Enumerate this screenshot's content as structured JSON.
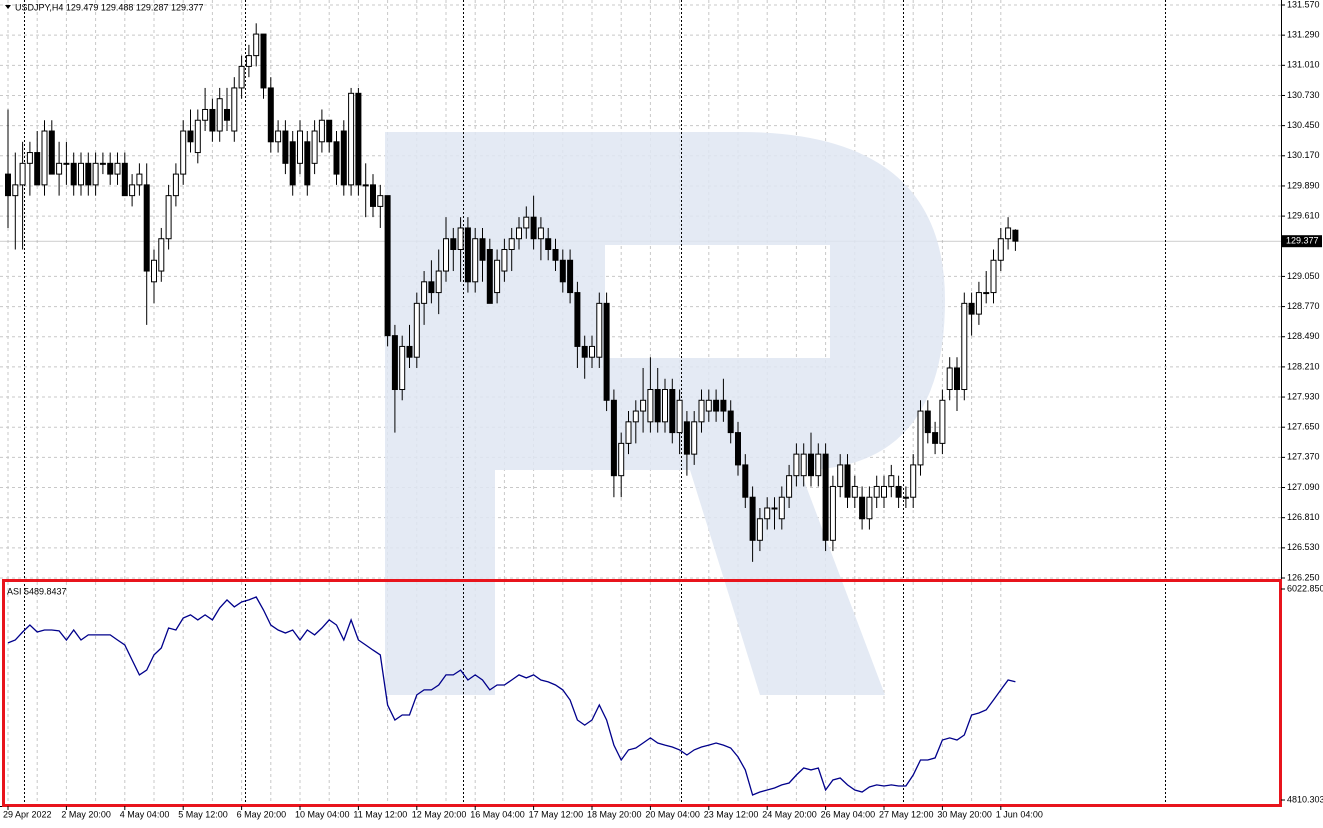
{
  "chart_data": [
    {
      "type": "candlestick",
      "title": "USDJPY,H4 129.479 129.488 129.287 129.377",
      "categories": [
        "29 Apr 2022",
        null,
        null,
        null,
        null,
        null,
        null,
        null,
        "2 May 20:00",
        null,
        null,
        null,
        null,
        null,
        null,
        null,
        "4 May 04:00",
        null,
        null,
        null,
        null,
        null,
        null,
        null,
        "5 May 12:00",
        null,
        null,
        null,
        null,
        null,
        null,
        null,
        "6 May 20:00",
        null,
        null,
        null,
        null,
        null,
        null,
        null,
        "10 May 04:00",
        null,
        null,
        null,
        null,
        null,
        null,
        null,
        "11 May 12:00",
        null,
        null,
        null,
        null,
        null,
        null,
        null,
        "12 May 20:00",
        null,
        null,
        null,
        null,
        null,
        null,
        null,
        "16 May 04:00",
        null,
        null,
        null,
        null,
        null,
        null,
        null,
        "17 May 12:00",
        null,
        null,
        null,
        null,
        null,
        null,
        null,
        "18 May 20:00",
        null,
        null,
        null,
        null,
        null,
        null,
        null,
        "20 May 04:00",
        null,
        null,
        null,
        null,
        null,
        null,
        null,
        "23 May 12:00",
        null,
        null,
        null,
        null,
        null,
        null,
        null,
        "24 May 20:00",
        null,
        null,
        null,
        null,
        null,
        null,
        null,
        "26 May 04:00",
        null,
        null,
        null,
        null,
        null,
        null,
        null,
        "27 May 12:00",
        null,
        null,
        null,
        null,
        null,
        null,
        null,
        "30 May 20:00",
        null,
        null,
        null,
        null,
        null,
        null,
        null,
        "1 Jun 04:00",
        null,
        null
      ],
      "ohlc": [
        [
          130.0,
          130.6,
          129.5,
          129.8
        ],
        [
          129.8,
          130.2,
          129.3,
          129.9
        ],
        [
          129.9,
          130.3,
          129.3,
          130.1
        ],
        [
          130.1,
          130.3,
          129.8,
          130.2
        ],
        [
          130.2,
          130.4,
          129.9,
          129.9
        ],
        [
          129.9,
          130.5,
          129.8,
          130.4
        ],
        [
          130.4,
          130.5,
          130.0,
          130.0
        ],
        [
          130.0,
          130.3,
          129.8,
          130.1
        ],
        [
          130.1,
          130.3,
          129.9,
          130.1
        ],
        [
          130.1,
          130.2,
          129.8,
          129.9
        ],
        [
          129.9,
          130.2,
          129.8,
          130.1
        ],
        [
          130.1,
          130.2,
          129.8,
          129.9
        ],
        [
          129.9,
          130.2,
          129.8,
          130.1
        ],
        [
          130.1,
          130.2,
          130.0,
          130.1
        ],
        [
          130.1,
          130.2,
          129.9,
          130.0
        ],
        [
          130.0,
          130.2,
          129.9,
          130.1
        ],
        [
          130.1,
          130.2,
          129.8,
          129.8
        ],
        [
          129.8,
          130.0,
          129.7,
          129.9
        ],
        [
          129.9,
          130.1,
          129.8,
          130.0
        ],
        [
          129.9,
          130.1,
          128.6,
          129.1
        ],
        [
          129.0,
          129.3,
          128.8,
          129.2
        ],
        [
          129.1,
          129.5,
          129.0,
          129.4
        ],
        [
          129.4,
          129.9,
          129.3,
          129.8
        ],
        [
          129.8,
          130.1,
          129.7,
          130.0
        ],
        [
          130.0,
          130.5,
          129.9,
          130.4
        ],
        [
          130.4,
          130.6,
          130.2,
          130.3
        ],
        [
          130.2,
          130.6,
          130.1,
          130.5
        ],
        [
          130.5,
          130.8,
          130.4,
          130.6
        ],
        [
          130.6,
          130.7,
          130.3,
          130.4
        ],
        [
          130.4,
          130.8,
          130.3,
          130.7
        ],
        [
          130.6,
          130.8,
          130.4,
          130.5
        ],
        [
          130.4,
          130.9,
          130.3,
          130.8
        ],
        [
          130.8,
          131.1,
          130.7,
          131.0
        ],
        [
          131.0,
          131.2,
          130.9,
          131.1
        ],
        [
          131.1,
          131.4,
          131.0,
          131.3
        ],
        [
          131.3,
          131.3,
          130.7,
          130.8
        ],
        [
          130.8,
          130.9,
          130.2,
          130.3
        ],
        [
          130.3,
          130.5,
          130.2,
          130.4
        ],
        [
          130.4,
          130.5,
          130.0,
          130.1
        ],
        [
          130.3,
          130.4,
          129.8,
          129.9
        ],
        [
          130.1,
          130.5,
          130.0,
          130.4
        ],
        [
          130.3,
          130.4,
          129.8,
          129.9
        ],
        [
          130.1,
          130.5,
          130.0,
          130.4
        ],
        [
          130.3,
          130.6,
          130.2,
          130.5
        ],
        [
          130.5,
          130.5,
          130.2,
          130.3
        ],
        [
          130.3,
          130.4,
          129.9,
          130.0
        ],
        [
          130.4,
          130.5,
          129.8,
          129.9
        ],
        [
          129.9,
          130.8,
          129.8,
          130.75
        ],
        [
          130.75,
          130.8,
          129.8,
          129.9
        ],
        [
          129.9,
          130.1,
          129.6,
          129.9
        ],
        [
          129.9,
          130.0,
          129.6,
          129.7
        ],
        [
          129.7,
          129.9,
          129.5,
          129.8
        ],
        [
          129.8,
          129.8,
          128.4,
          128.5
        ],
        [
          128.5,
          128.6,
          127.6,
          128.0
        ],
        [
          128.0,
          128.5,
          127.9,
          128.4
        ],
        [
          128.4,
          128.6,
          128.2,
          128.3
        ],
        [
          128.3,
          128.9,
          128.2,
          128.8
        ],
        [
          128.8,
          129.1,
          128.6,
          129.0
        ],
        [
          129.0,
          129.2,
          128.8,
          128.9
        ],
        [
          128.9,
          129.3,
          128.7,
          129.1
        ],
        [
          129.1,
          129.6,
          129.0,
          129.4
        ],
        [
          129.4,
          129.5,
          129.1,
          129.3
        ],
        [
          129.3,
          129.6,
          129.0,
          129.5
        ],
        [
          129.5,
          129.6,
          128.9,
          129.0
        ],
        [
          129.0,
          129.5,
          128.9,
          129.4
        ],
        [
          129.4,
          129.5,
          129.0,
          129.2
        ],
        [
          129.3,
          129.4,
          128.8,
          128.8
        ],
        [
          128.9,
          129.3,
          128.8,
          129.2
        ],
        [
          129.1,
          129.4,
          129.0,
          129.3
        ],
        [
          129.3,
          129.5,
          129.1,
          129.4
        ],
        [
          129.4,
          129.6,
          129.3,
          129.5
        ],
        [
          129.5,
          129.7,
          129.4,
          129.6
        ],
        [
          129.6,
          129.8,
          129.3,
          129.4
        ],
        [
          129.4,
          129.6,
          129.2,
          129.5
        ],
        [
          129.4,
          129.5,
          129.2,
          129.3
        ],
        [
          129.3,
          129.4,
          129.1,
          129.2
        ],
        [
          129.2,
          129.3,
          128.9,
          129.0
        ],
        [
          129.2,
          129.3,
          128.8,
          128.9
        ],
        [
          128.9,
          129.0,
          128.2,
          128.4
        ],
        [
          128.4,
          128.5,
          128.1,
          128.3
        ],
        [
          128.3,
          128.5,
          128.2,
          128.4
        ],
        [
          128.3,
          128.9,
          128.2,
          128.8
        ],
        [
          128.8,
          128.9,
          127.8,
          127.9
        ],
        [
          127.9,
          128.0,
          127.0,
          127.2
        ],
        [
          127.2,
          127.6,
          127.0,
          127.5
        ],
        [
          127.5,
          127.8,
          127.4,
          127.7
        ],
        [
          127.7,
          127.9,
          127.5,
          127.8
        ],
        [
          127.8,
          128.2,
          127.6,
          127.9
        ],
        [
          127.7,
          128.3,
          127.6,
          128.0
        ],
        [
          128.0,
          128.2,
          127.6,
          127.7
        ],
        [
          127.7,
          128.1,
          127.6,
          128.0
        ],
        [
          128.0,
          128.1,
          127.5,
          127.6
        ],
        [
          127.6,
          128.0,
          127.4,
          127.9
        ],
        [
          127.7,
          127.8,
          127.2,
          127.4
        ],
        [
          127.4,
          127.8,
          127.3,
          127.7
        ],
        [
          127.7,
          128.0,
          127.6,
          127.9
        ],
        [
          127.8,
          128.0,
          127.7,
          127.9
        ],
        [
          127.9,
          128.0,
          127.7,
          127.8
        ],
        [
          127.9,
          128.1,
          127.7,
          127.8
        ],
        [
          127.8,
          127.9,
          127.5,
          127.6
        ],
        [
          127.6,
          127.7,
          127.2,
          127.3
        ],
        [
          127.3,
          127.4,
          126.9,
          127.0
        ],
        [
          127.0,
          127.1,
          126.4,
          126.6
        ],
        [
          126.6,
          126.9,
          126.5,
          126.8
        ],
        [
          126.8,
          127.0,
          126.7,
          126.9
        ],
        [
          126.9,
          127.0,
          126.7,
          126.9
        ],
        [
          126.8,
          127.1,
          126.7,
          127.0
        ],
        [
          127.0,
          127.3,
          126.9,
          127.2
        ],
        [
          127.2,
          127.5,
          127.1,
          127.4
        ],
        [
          127.2,
          127.5,
          127.1,
          127.4
        ],
        [
          127.4,
          127.6,
          127.1,
          127.2
        ],
        [
          127.2,
          127.5,
          127.1,
          127.4
        ],
        [
          127.4,
          127.5,
          126.5,
          126.6
        ],
        [
          126.6,
          127.2,
          126.5,
          127.1
        ],
        [
          127.1,
          127.4,
          127.0,
          127.3
        ],
        [
          127.3,
          127.4,
          126.9,
          127.0
        ],
        [
          127.0,
          127.2,
          126.9,
          127.1
        ],
        [
          127.0,
          127.1,
          126.7,
          126.8
        ],
        [
          126.8,
          127.1,
          126.7,
          127.0
        ],
        [
          127.0,
          127.2,
          126.9,
          127.1
        ],
        [
          127.0,
          127.2,
          126.9,
          127.1
        ],
        [
          127.1,
          127.3,
          127.0,
          127.2
        ],
        [
          127.1,
          127.2,
          126.9,
          127.0
        ],
        [
          127.0,
          127.1,
          126.9,
          127.0
        ],
        [
          127.0,
          127.4,
          126.9,
          127.3
        ],
        [
          127.3,
          127.9,
          127.2,
          127.8
        ],
        [
          127.8,
          127.9,
          127.5,
          127.6
        ],
        [
          127.6,
          127.7,
          127.4,
          127.5
        ],
        [
          127.5,
          128.0,
          127.4,
          127.9
        ],
        [
          128.0,
          128.3,
          127.9,
          128.2
        ],
        [
          128.2,
          128.3,
          127.8,
          128.0
        ],
        [
          128.0,
          128.9,
          127.9,
          128.8
        ],
        [
          128.8,
          128.9,
          128.5,
          128.7
        ],
        [
          128.7,
          129.0,
          128.6,
          128.9
        ],
        [
          128.9,
          129.1,
          128.8,
          128.9
        ],
        [
          128.9,
          129.3,
          128.8,
          129.2
        ],
        [
          129.2,
          129.5,
          129.1,
          129.4
        ],
        [
          129.4,
          129.6,
          129.3,
          129.5
        ],
        [
          129.479,
          129.488,
          129.287,
          129.377
        ]
      ],
      "up_color": "#ffffff",
      "down_color": "#000000",
      "ylim": [
        126.25,
        131.57
      ],
      "yticks": [
        {
          "value": 126.25,
          "label": "126.250"
        },
        {
          "value": 126.53,
          "label": "126.530"
        },
        {
          "value": 126.81,
          "label": "126.810"
        },
        {
          "value": 127.09,
          "label": "127.090"
        },
        {
          "value": 127.37,
          "label": "127.370"
        },
        {
          "value": 127.65,
          "label": "127.650"
        },
        {
          "value": 127.93,
          "label": "127.930"
        },
        {
          "value": 128.21,
          "label": "128.210"
        },
        {
          "value": 128.49,
          "label": "128.490"
        },
        {
          "value": 128.77,
          "label": "128.770"
        },
        {
          "value": 129.05,
          "label": "129.050"
        },
        {
          "value": 129.61,
          "label": "129.610"
        },
        {
          "value": 129.89,
          "label": "129.890"
        },
        {
          "value": 130.17,
          "label": "130.170"
        },
        {
          "value": 130.45,
          "label": "130.450"
        },
        {
          "value": 130.73,
          "label": "130.730"
        },
        {
          "value": 131.01,
          "label": "131.010"
        },
        {
          "value": 131.29,
          "label": "131.290"
        },
        {
          "value": 131.57,
          "label": "131.570"
        }
      ],
      "current_price": {
        "value": 129.377,
        "label": "129.377"
      },
      "grid": true
    },
    {
      "type": "line",
      "title": "ASI 5489.8437",
      "color": "#00008b",
      "values": [
        5713,
        5730,
        5776,
        5816,
        5776,
        5787,
        5787,
        5782,
        5730,
        5787,
        5730,
        5759,
        5759,
        5759,
        5759,
        5730,
        5701,
        5615,
        5529,
        5557,
        5644,
        5684,
        5799,
        5787,
        5856,
        5874,
        5845,
        5874,
        5845,
        5914,
        5960,
        5920,
        5948,
        5960,
        5977,
        5902,
        5816,
        5787,
        5770,
        5787,
        5730,
        5787,
        5759,
        5799,
        5845,
        5816,
        5730,
        5845,
        5730,
        5701,
        5672,
        5644,
        5356,
        5270,
        5299,
        5299,
        5414,
        5443,
        5443,
        5471,
        5529,
        5529,
        5557,
        5500,
        5529,
        5500,
        5443,
        5471,
        5471,
        5500,
        5529,
        5512,
        5529,
        5500,
        5489,
        5471,
        5443,
        5385,
        5270,
        5241,
        5270,
        5356,
        5270,
        5126,
        5040,
        5098,
        5109,
        5138,
        5167,
        5138,
        5126,
        5115,
        5098,
        5069,
        5098,
        5115,
        5126,
        5138,
        5126,
        5109,
        5058,
        4983,
        4839,
        4856,
        4868,
        4879,
        4897,
        4908,
        4954,
        4994,
        4983,
        4994,
        4868,
        4925,
        4937,
        4897,
        4868,
        4856,
        4885,
        4897,
        4891,
        4897,
        4891,
        4891,
        4954,
        5040,
        5040,
        5052,
        5155,
        5167,
        5155,
        5184,
        5299,
        5310,
        5328,
        5385,
        5443,
        5500,
        5489.8437
      ],
      "ylim": [
        4810.3031,
        6022.8502
      ],
      "yticks": [
        4810.3031,
        6022.8502
      ],
      "grid": false
    }
  ]
}
